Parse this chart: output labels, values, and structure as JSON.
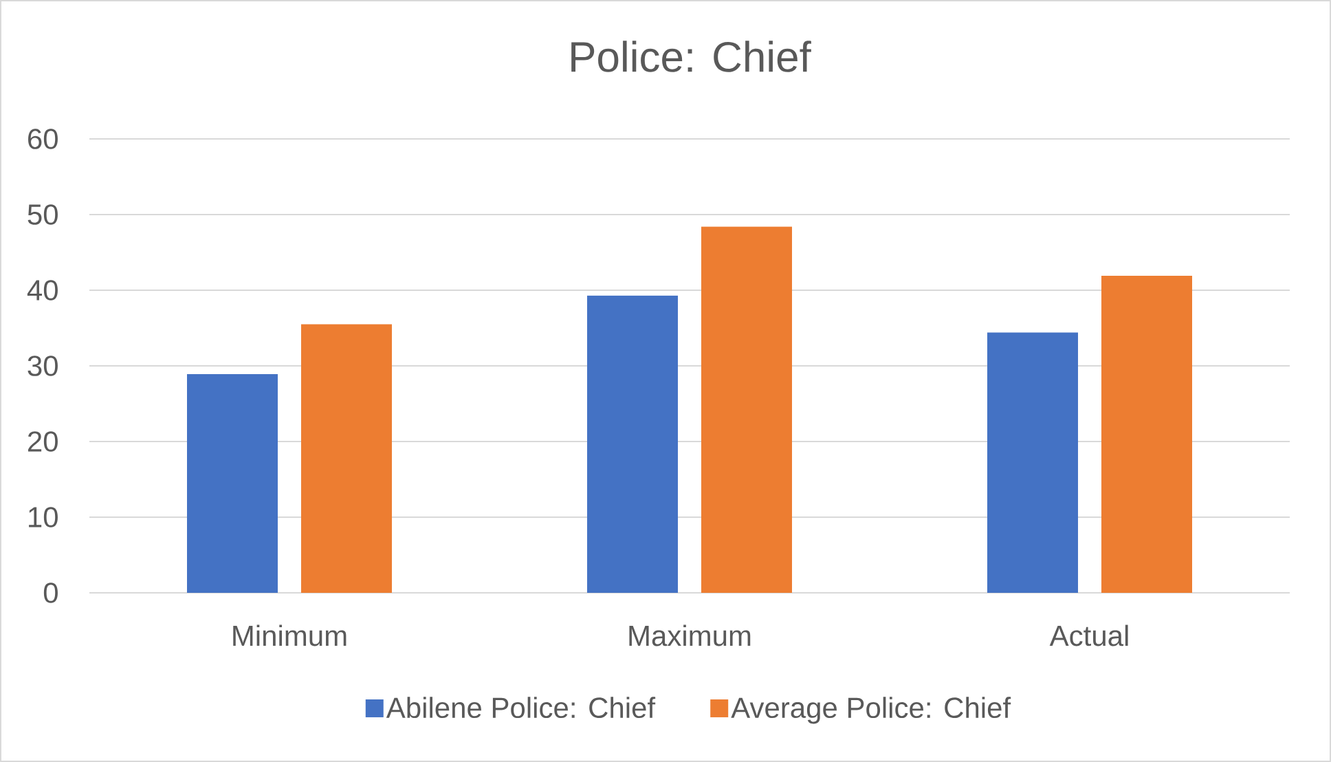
{
  "chart_data": {
    "type": "bar",
    "title": "Police: Chief",
    "categories": [
      "Minimum",
      "Maximum",
      "Actual"
    ],
    "series": [
      {
        "name": "Abilene Police: Chief",
        "color": "#4472c4",
        "values": [
          28.9,
          39.3,
          34.4
        ]
      },
      {
        "name": "Average Police: Chief",
        "color": "#ed7d31",
        "values": [
          35.5,
          48.4,
          41.9
        ]
      }
    ],
    "ylim": [
      0,
      60
    ],
    "yticks": [
      0,
      10,
      20,
      30,
      40,
      50,
      60
    ],
    "grid": "y",
    "legend": "bottom"
  }
}
